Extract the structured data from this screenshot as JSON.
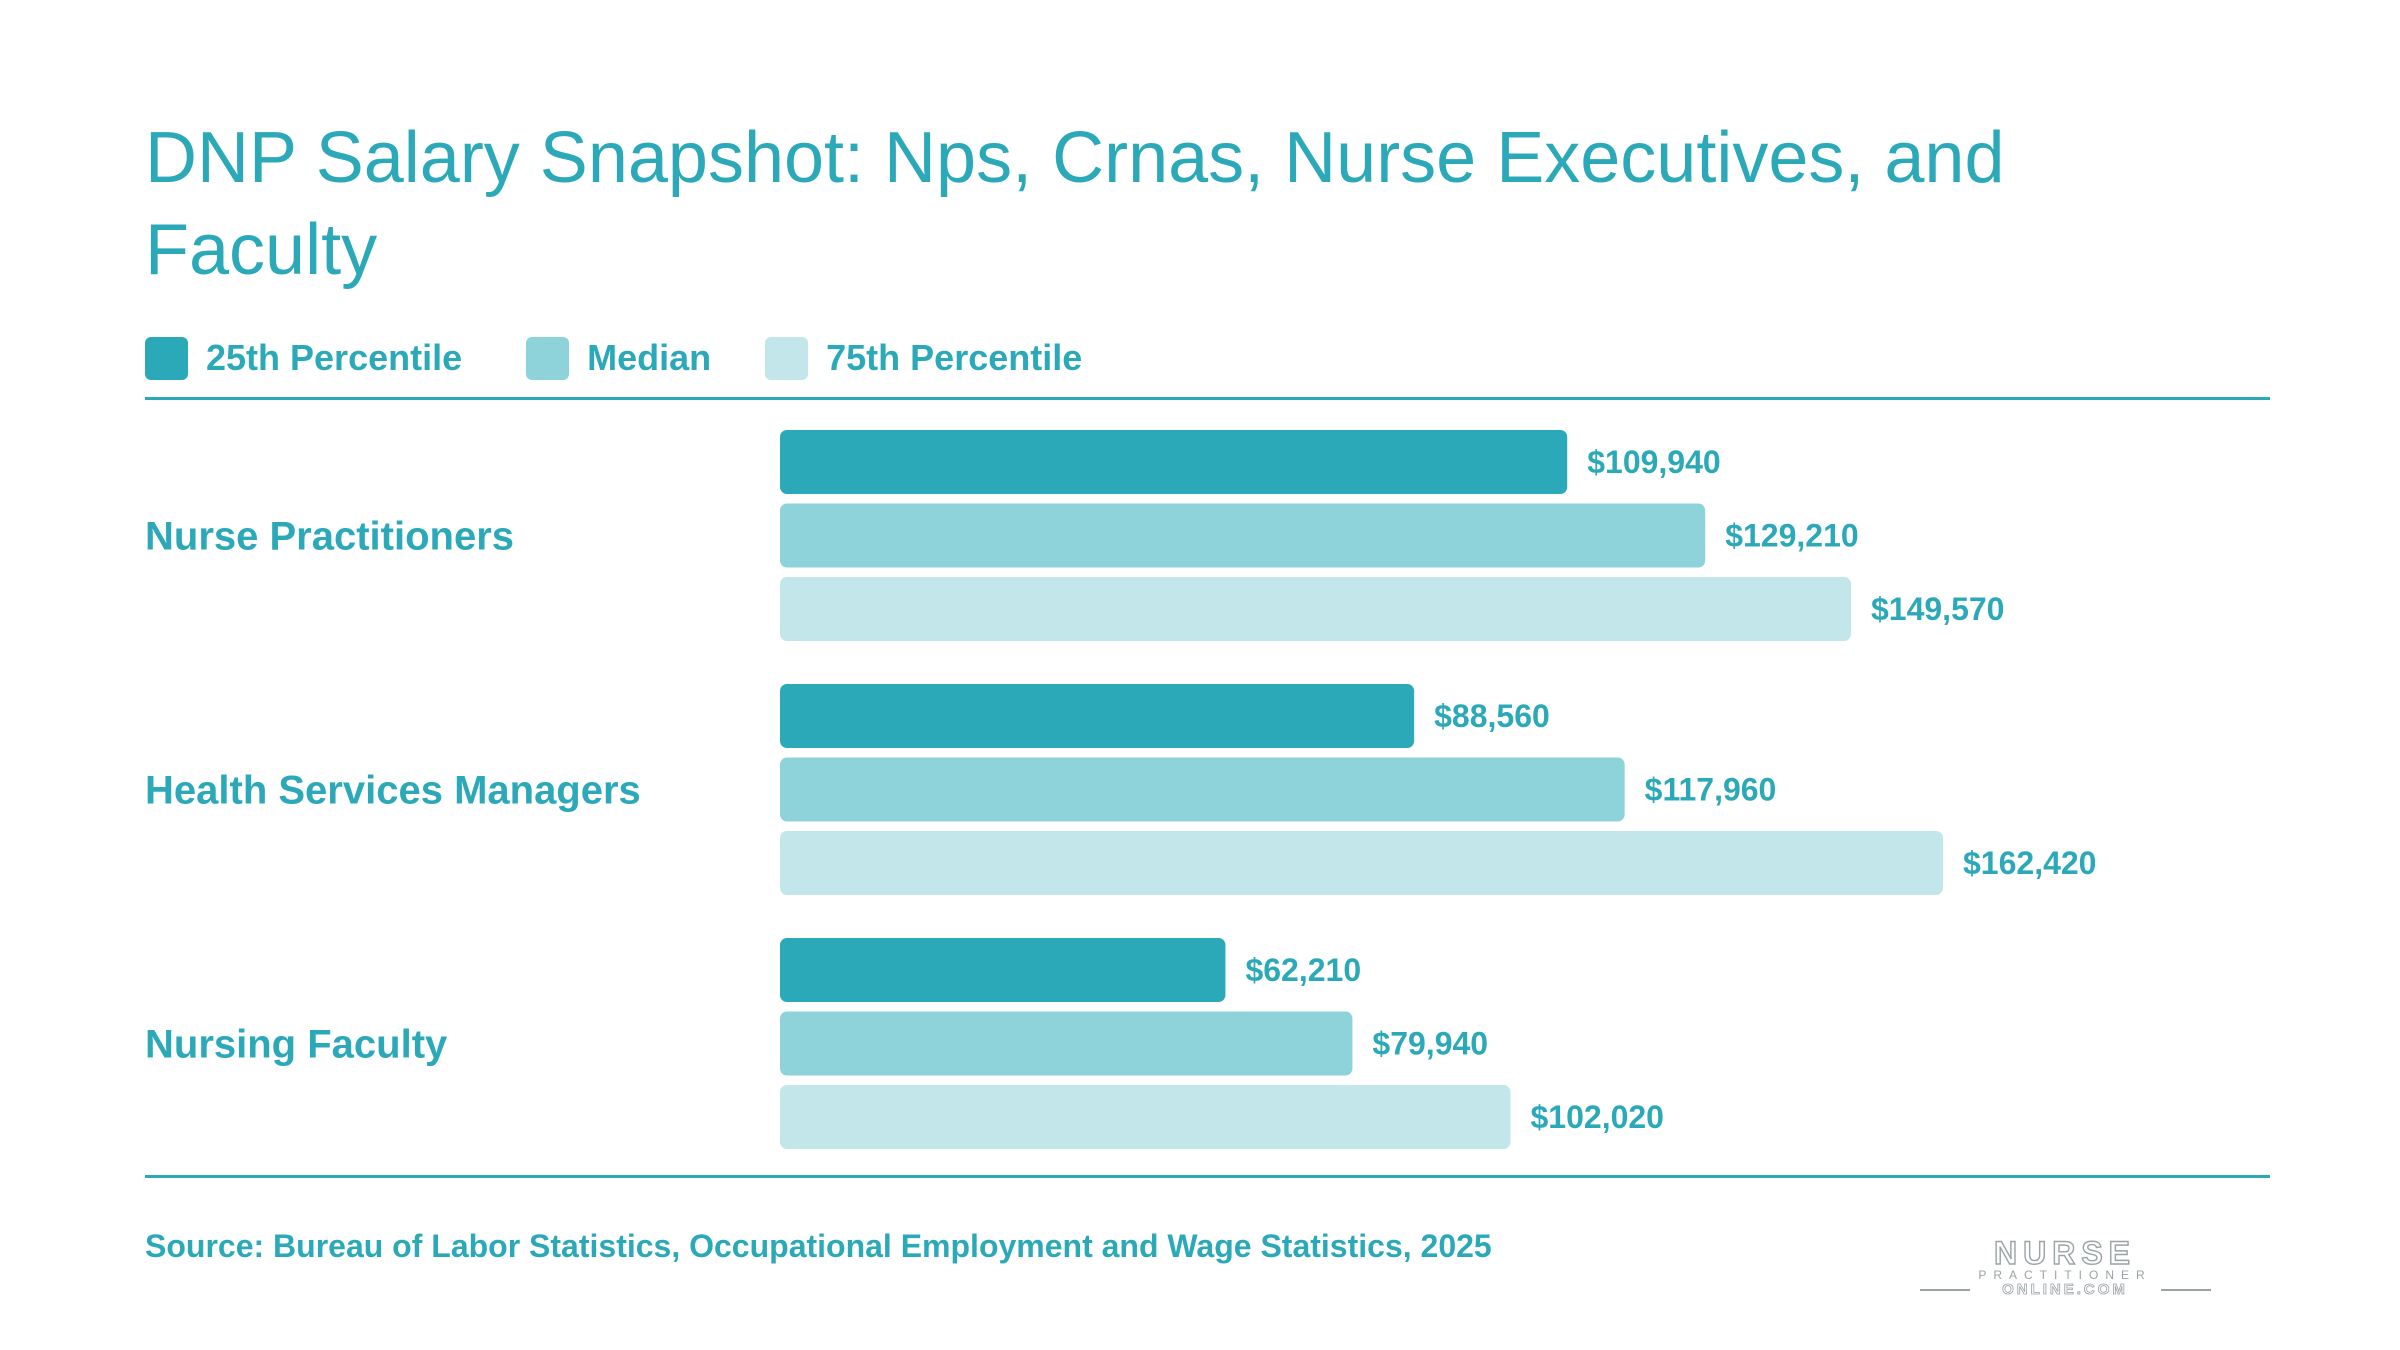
{
  "colors": {
    "text": "#2ca9b8",
    "p25": "#2ca9b8",
    "median": "#8ed2da",
    "p75": "#c2e6e9"
  },
  "chart_data": {
    "type": "bar",
    "orientation": "horizontal",
    "title": "DNP Salary Snapshot: Nps, Crnas, Nurse Executives, and Faculty",
    "categories": [
      "Nurse Practitioners",
      "Health Services Managers",
      "Nursing Faculty"
    ],
    "series": [
      {
        "name": "25th Percentile",
        "values": [
          109940,
          88560,
          62210
        ],
        "labels": [
          "$109,940",
          "$88,560",
          "$62,210"
        ]
      },
      {
        "name": "Median",
        "values": [
          129210,
          117960,
          79940
        ],
        "labels": [
          "$129,210",
          "$117,960",
          "$79,940"
        ]
      },
      {
        "name": "75th Percentile",
        "values": [
          149570,
          162420,
          102020
        ],
        "labels": [
          "$149,570",
          "$162,420",
          "$102,020"
        ]
      }
    ],
    "legend_position": "top-left",
    "grid": false
  },
  "source": "Source: Bureau of Labor Statistics, Occupational Employment and Wage Statistics, 2025",
  "logo": {
    "line1": "NURSE",
    "line2": "PRACTITIONER",
    "line3": "ONLINE.COM"
  }
}
